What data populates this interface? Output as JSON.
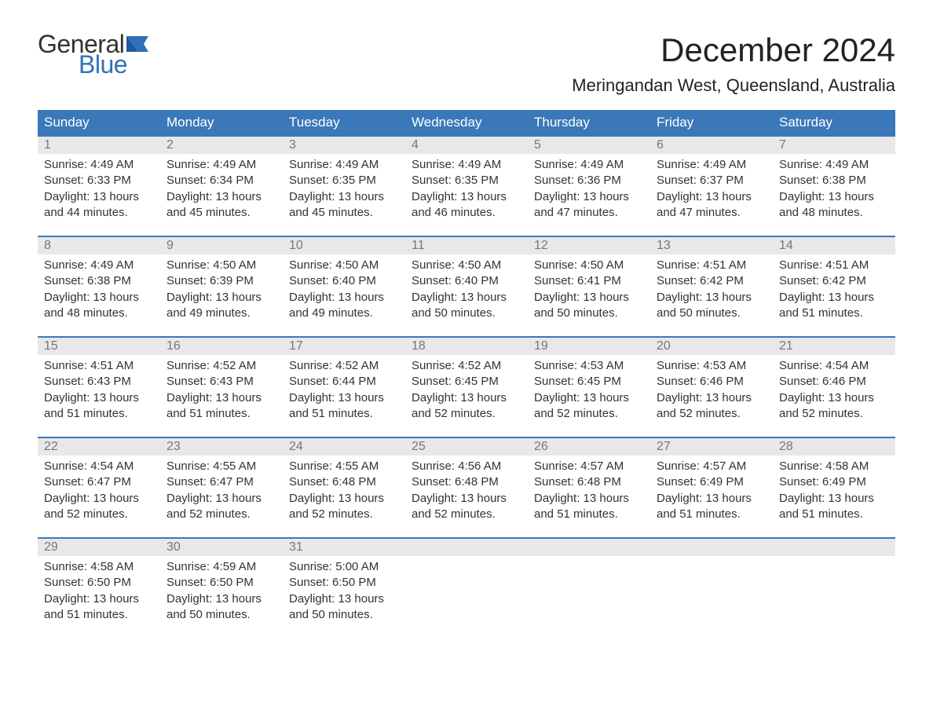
{
  "colors": {
    "header_bg": "#3a78b9",
    "header_text": "#ffffff",
    "daynum_bg": "#e8e8e8",
    "daynum_text": "#777777",
    "body_text": "#333333",
    "logo_blue": "#2f71b8",
    "week_divider": "#3a78b9",
    "page_bg": "#ffffff"
  },
  "typography": {
    "month_title_fontsize": 42,
    "location_fontsize": 22,
    "dow_fontsize": 17,
    "daynum_fontsize": 16,
    "daytext_fontsize": 15
  },
  "logo": {
    "line1": "General",
    "line2": "Blue"
  },
  "title": "December 2024",
  "location": "Meringandan West, Queensland, Australia",
  "days_of_week": [
    "Sunday",
    "Monday",
    "Tuesday",
    "Wednesday",
    "Thursday",
    "Friday",
    "Saturday"
  ],
  "weeks": [
    [
      {
        "num": "1",
        "sunrise": "4:49 AM",
        "sunset": "6:33 PM",
        "daylight": "13 hours and 44 minutes."
      },
      {
        "num": "2",
        "sunrise": "4:49 AM",
        "sunset": "6:34 PM",
        "daylight": "13 hours and 45 minutes."
      },
      {
        "num": "3",
        "sunrise": "4:49 AM",
        "sunset": "6:35 PM",
        "daylight": "13 hours and 45 minutes."
      },
      {
        "num": "4",
        "sunrise": "4:49 AM",
        "sunset": "6:35 PM",
        "daylight": "13 hours and 46 minutes."
      },
      {
        "num": "5",
        "sunrise": "4:49 AM",
        "sunset": "6:36 PM",
        "daylight": "13 hours and 47 minutes."
      },
      {
        "num": "6",
        "sunrise": "4:49 AM",
        "sunset": "6:37 PM",
        "daylight": "13 hours and 47 minutes."
      },
      {
        "num": "7",
        "sunrise": "4:49 AM",
        "sunset": "6:38 PM",
        "daylight": "13 hours and 48 minutes."
      }
    ],
    [
      {
        "num": "8",
        "sunrise": "4:49 AM",
        "sunset": "6:38 PM",
        "daylight": "13 hours and 48 minutes."
      },
      {
        "num": "9",
        "sunrise": "4:50 AM",
        "sunset": "6:39 PM",
        "daylight": "13 hours and 49 minutes."
      },
      {
        "num": "10",
        "sunrise": "4:50 AM",
        "sunset": "6:40 PM",
        "daylight": "13 hours and 49 minutes."
      },
      {
        "num": "11",
        "sunrise": "4:50 AM",
        "sunset": "6:40 PM",
        "daylight": "13 hours and 50 minutes."
      },
      {
        "num": "12",
        "sunrise": "4:50 AM",
        "sunset": "6:41 PM",
        "daylight": "13 hours and 50 minutes."
      },
      {
        "num": "13",
        "sunrise": "4:51 AM",
        "sunset": "6:42 PM",
        "daylight": "13 hours and 50 minutes."
      },
      {
        "num": "14",
        "sunrise": "4:51 AM",
        "sunset": "6:42 PM",
        "daylight": "13 hours and 51 minutes."
      }
    ],
    [
      {
        "num": "15",
        "sunrise": "4:51 AM",
        "sunset": "6:43 PM",
        "daylight": "13 hours and 51 minutes."
      },
      {
        "num": "16",
        "sunrise": "4:52 AM",
        "sunset": "6:43 PM",
        "daylight": "13 hours and 51 minutes."
      },
      {
        "num": "17",
        "sunrise": "4:52 AM",
        "sunset": "6:44 PM",
        "daylight": "13 hours and 51 minutes."
      },
      {
        "num": "18",
        "sunrise": "4:52 AM",
        "sunset": "6:45 PM",
        "daylight": "13 hours and 52 minutes."
      },
      {
        "num": "19",
        "sunrise": "4:53 AM",
        "sunset": "6:45 PM",
        "daylight": "13 hours and 52 minutes."
      },
      {
        "num": "20",
        "sunrise": "4:53 AM",
        "sunset": "6:46 PM",
        "daylight": "13 hours and 52 minutes."
      },
      {
        "num": "21",
        "sunrise": "4:54 AM",
        "sunset": "6:46 PM",
        "daylight": "13 hours and 52 minutes."
      }
    ],
    [
      {
        "num": "22",
        "sunrise": "4:54 AM",
        "sunset": "6:47 PM",
        "daylight": "13 hours and 52 minutes."
      },
      {
        "num": "23",
        "sunrise": "4:55 AM",
        "sunset": "6:47 PM",
        "daylight": "13 hours and 52 minutes."
      },
      {
        "num": "24",
        "sunrise": "4:55 AM",
        "sunset": "6:48 PM",
        "daylight": "13 hours and 52 minutes."
      },
      {
        "num": "25",
        "sunrise": "4:56 AM",
        "sunset": "6:48 PM",
        "daylight": "13 hours and 52 minutes."
      },
      {
        "num": "26",
        "sunrise": "4:57 AM",
        "sunset": "6:48 PM",
        "daylight": "13 hours and 51 minutes."
      },
      {
        "num": "27",
        "sunrise": "4:57 AM",
        "sunset": "6:49 PM",
        "daylight": "13 hours and 51 minutes."
      },
      {
        "num": "28",
        "sunrise": "4:58 AM",
        "sunset": "6:49 PM",
        "daylight": "13 hours and 51 minutes."
      }
    ],
    [
      {
        "num": "29",
        "sunrise": "4:58 AM",
        "sunset": "6:50 PM",
        "daylight": "13 hours and 51 minutes."
      },
      {
        "num": "30",
        "sunrise": "4:59 AM",
        "sunset": "6:50 PM",
        "daylight": "13 hours and 50 minutes."
      },
      {
        "num": "31",
        "sunrise": "5:00 AM",
        "sunset": "6:50 PM",
        "daylight": "13 hours and 50 minutes."
      },
      null,
      null,
      null,
      null
    ]
  ],
  "labels": {
    "sunrise": "Sunrise:",
    "sunset": "Sunset:",
    "daylight": "Daylight:"
  }
}
